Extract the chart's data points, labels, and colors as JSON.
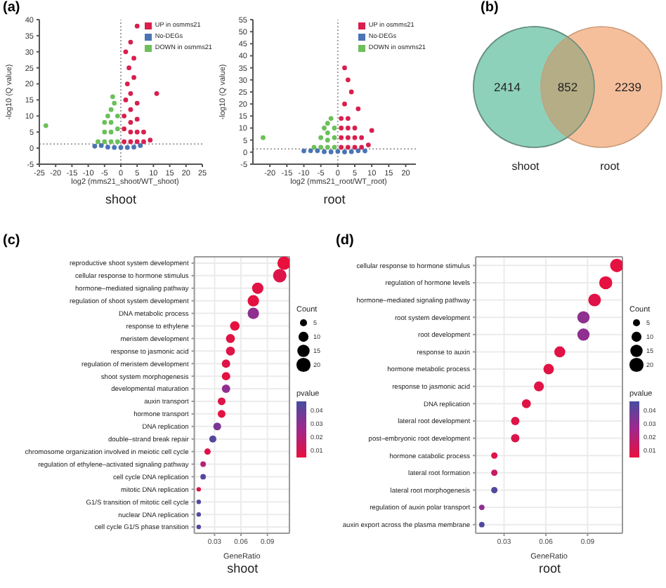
{
  "chart_data": [
    {
      "type": "scatter",
      "title": "shoot",
      "xlabel": "log2 (mms21_shoot/WT_shoot)",
      "ylabel": "-log10 (Q value)",
      "annotations": [
        "(a)"
      ],
      "xlim": [
        -25,
        25
      ],
      "xticks": [
        -25,
        -20,
        -15,
        -10,
        -5,
        0,
        5,
        10,
        15,
        20,
        25
      ],
      "ylim": [
        -5,
        40
      ],
      "yticks": [
        -5,
        0,
        5,
        10,
        15,
        20,
        25,
        30,
        35,
        40
      ],
      "legend": "top right",
      "marker": "circle",
      "ref_lines": [
        {
          "axis": "x",
          "value": 0,
          "color": "#a0a0a0",
          "line_style": "dotted"
        },
        {
          "axis": "y",
          "value": 1.3,
          "color": "#a0a0a0",
          "line_style": "dotted"
        }
      ],
      "series": [
        {
          "name": "UP in osmms21",
          "color": "#d81f4e",
          "x": [
            1,
            1,
            1,
            1.5,
            2,
            2.5,
            1.5,
            3,
            3,
            3,
            3,
            3,
            5,
            5,
            5,
            5,
            7,
            7,
            4,
            3,
            5,
            11,
            9,
            4
          ],
          "values": [
            2,
            6,
            10,
            15,
            20,
            25,
            30,
            2,
            5,
            8,
            12,
            17,
            2,
            5,
            9,
            14,
            2,
            5,
            22,
            33,
            38,
            17,
            2.5,
            28
          ]
        },
        {
          "name": "No-DEGs",
          "color": "#4a74b4",
          "x": [
            -8,
            -6,
            -4,
            -2,
            0,
            2,
            4,
            6
          ],
          "values": [
            0.6,
            0.8,
            0.3,
            0.2,
            0.2,
            0.2,
            0.3,
            0.8
          ]
        },
        {
          "name": "DOWN in osmms21",
          "color": "#6cbf5a",
          "x": [
            -1,
            -1,
            -1,
            -3,
            -3,
            -3,
            -3,
            -5,
            -5,
            -5,
            -2,
            -4,
            -7,
            -23,
            -2.5
          ],
          "values": [
            2,
            6,
            10,
            2,
            5,
            8,
            12,
            2,
            5,
            8,
            14,
            10,
            2,
            7,
            16
          ]
        }
      ]
    },
    {
      "type": "scatter",
      "title": "root",
      "xlabel": "log2 (mms21_root/WT_root)",
      "ylabel": "-log10 (Q value)",
      "xlim": [
        -25,
        23
      ],
      "xticks": [
        -20,
        -15,
        -10,
        -5,
        0,
        5,
        10,
        15,
        20
      ],
      "ylim": [
        -5,
        55
      ],
      "yticks": [
        -5,
        0,
        5,
        10,
        15,
        20,
        25,
        30,
        35,
        40,
        45,
        50,
        55
      ],
      "legend": "top right",
      "marker": "circle",
      "ref_lines": [
        {
          "axis": "x",
          "value": 0,
          "color": "#a0a0a0",
          "line_style": "dotted"
        },
        {
          "axis": "y",
          "value": 1.3,
          "color": "#a0a0a0",
          "line_style": "dotted"
        }
      ],
      "series": [
        {
          "name": "UP in osmms21",
          "color": "#d81f4e",
          "x": [
            1,
            1,
            1,
            1,
            3,
            3,
            3,
            3,
            5,
            5,
            5,
            7,
            7,
            9,
            2,
            4,
            3,
            6,
            10,
            2
          ],
          "values": [
            2,
            6,
            10,
            14,
            2,
            6,
            10,
            14,
            2,
            6,
            10,
            2,
            6,
            3,
            20,
            25,
            30,
            18,
            9,
            35
          ]
        },
        {
          "name": "No-DEGs",
          "color": "#4a74b4",
          "x": [
            -10,
            -8,
            -6,
            -4,
            -2,
            0,
            2,
            4,
            6,
            8
          ],
          "values": [
            0.5,
            0.6,
            0.6,
            0.2,
            0.1,
            0.3,
            0.1,
            0.2,
            0.6,
            0.5
          ]
        },
        {
          "name": "DOWN in osmms21",
          "color": "#6cbf5a",
          "x": [
            -1,
            -1,
            -1,
            -3,
            -3,
            -3,
            -3,
            -5,
            -5,
            -7,
            -2,
            -22,
            -4
          ],
          "values": [
            2,
            6,
            10,
            2,
            5,
            8,
            12,
            2,
            6,
            2,
            14,
            6,
            10
          ]
        }
      ]
    },
    {
      "type": "other",
      "annotations": [
        "(b)"
      ],
      "categories": [
        "shoot",
        null,
        "root"
      ],
      "values": [
        2414,
        852,
        2239
      ],
      "colors": [
        "#8ed1bb",
        "#b5ad86",
        "#f6bf9b"
      ],
      "data_labels": true
    },
    {
      "type": "bubble",
      "title": "shoot",
      "xlabel": "GeneRatio",
      "annotations": [
        "(c)"
      ],
      "orientation": "horizontal",
      "marker": "circle",
      "grid": true,
      "legend_title": "Count",
      "clabel": "pvalue",
      "xlim": [
        0.007,
        0.115
      ],
      "xticks": [
        0.03,
        0.06,
        0.09
      ],
      "size_legend": [
        5,
        10,
        15,
        20
      ],
      "clim": [
        0.005,
        0.047
      ],
      "cticks": [
        0.01,
        0.02,
        0.03,
        0.04
      ],
      "categories": [
        "reproductive shoot system development",
        "cellular response to hormone stimulus",
        "hormone–mediated signaling pathway",
        "regulation of shoot system development",
        "DNA metabolic process",
        "response to ethylene",
        "meristem development",
        "response to jasmonic acid",
        "regulation of meristem development",
        "shoot system morphogenesis",
        "developmental maturation",
        "auxin transport",
        "hormone transport",
        "DNA replication",
        "double–strand break repair",
        "chromosome organization involved in meiotic cell cycle",
        "regulation of ethylene–activated signaling pathway",
        "cell cycle DNA replication",
        "mitotic DNA replication",
        "G1/S transition of mitotic cell cycle",
        "nuclear DNA replication",
        "cell cycle G1/S phase transition"
      ],
      "values": [
        0.109,
        0.104,
        0.079,
        0.074,
        0.074,
        0.053,
        0.048,
        0.048,
        0.043,
        0.043,
        0.043,
        0.038,
        0.038,
        0.033,
        0.028,
        0.022,
        0.017,
        0.017,
        0.012,
        0.012,
        0.012,
        0.012
      ],
      "sizes": [
        18,
        18,
        13,
        13,
        13,
        9,
        8,
        8,
        7,
        7,
        7,
        6,
        6,
        6,
        5,
        4,
        3,
        3,
        2,
        2,
        2,
        2
      ],
      "cvalues": [
        0.005,
        0.008,
        0.007,
        0.006,
        0.03,
        0.006,
        0.007,
        0.008,
        0.008,
        0.006,
        0.03,
        0.008,
        0.006,
        0.035,
        0.044,
        0.008,
        0.02,
        0.044,
        0.008,
        0.045,
        0.045,
        0.045
      ]
    },
    {
      "type": "bubble",
      "title": "root",
      "xlabel": "GeneRatio",
      "annotations": [
        "(d)"
      ],
      "orientation": "horizontal",
      "marker": "circle",
      "grid": true,
      "legend_title": "Count",
      "clabel": "pvalue",
      "xlim": [
        0.0096,
        0.115
      ],
      "xticks": [
        0.03,
        0.06,
        0.09
      ],
      "size_legend": [
        5,
        10,
        15,
        20
      ],
      "clim": [
        0.005,
        0.047
      ],
      "cticks": [
        0.01,
        0.02,
        0.03,
        0.04
      ],
      "categories": [
        "cellular response to hormone stimulus",
        "regulation of hormone levels",
        "hormone–mediated signaling pathway",
        "root system development",
        "root development",
        "response to auxin",
        "hormone metabolic process",
        "response to jasmonic acid",
        "DNA replication",
        "lateral root development",
        "post–embryonic root development",
        "hormone catabolic process",
        "lateral root formation",
        "lateral root morphogenesis",
        "regulation of auxin polar transport",
        "auxin export across the plasma membrane"
      ],
      "values": [
        0.111,
        0.103,
        0.095,
        0.087,
        0.087,
        0.07,
        0.062,
        0.055,
        0.046,
        0.038,
        0.038,
        0.023,
        0.023,
        0.023,
        0.014,
        0.014
      ],
      "sizes": [
        18,
        17,
        16,
        15,
        15,
        12,
        11,
        10,
        8,
        7,
        7,
        4,
        4,
        4,
        3,
        3
      ],
      "cvalues": [
        0.006,
        0.006,
        0.008,
        0.03,
        0.03,
        0.007,
        0.007,
        0.008,
        0.007,
        0.008,
        0.009,
        0.008,
        0.015,
        0.045,
        0.03,
        0.045
      ]
    }
  ]
}
